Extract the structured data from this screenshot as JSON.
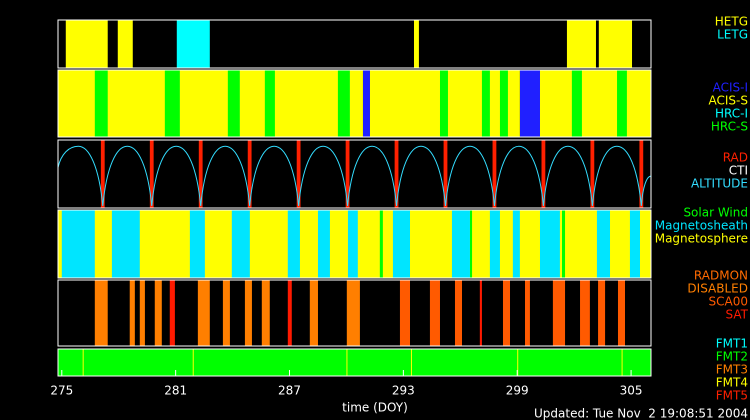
{
  "chart_data": {
    "type": "timeline",
    "xlim": [
      274.8,
      306.05
    ],
    "xticks": [
      275,
      281,
      287,
      293,
      299,
      305
    ],
    "xlabel": "time (DOY)",
    "footer": "Updated: Tue Nov  2 19:08:51 2004",
    "panels": [
      {
        "background": "#000000",
        "series": [
          {
            "name": "HETG",
            "color": "#ffff00",
            "intervals": [
              [
                275.21,
                277.42
              ],
              [
                277.95,
                278.74
              ],
              [
                293.56,
                293.82
              ],
              [
                301.62,
                303.15
              ],
              [
                303.3,
                305.05
              ]
            ]
          },
          {
            "name": "LETG",
            "color": "#00ffff",
            "intervals": [
              [
                281.06,
                282.8
              ]
            ]
          }
        ]
      },
      {
        "background": "#000000",
        "series": [
          {
            "name": "ACIS-I",
            "color": "#2020ff",
            "intervals": [
              [
                290.87,
                291.24
              ],
              [
                299.14,
                300.2
              ]
            ]
          },
          {
            "name": "ACIS-S",
            "color": "#ffff00",
            "intervals": [
              [
                274.8,
                290.87
              ],
              [
                291.24,
                299.14
              ],
              [
                300.2,
                306.05
              ]
            ]
          },
          {
            "name": "HRC-I",
            "color": "#00ffff",
            "intervals": []
          },
          {
            "name": "HRC-S",
            "color": "#00ff00",
            "intervals": [
              [
                276.74,
                277.42
              ],
              [
                280.43,
                281.22
              ],
              [
                283.75,
                284.38
              ],
              [
                285.7,
                286.23
              ],
              [
                289.55,
                290.18
              ],
              [
                294.93,
                295.35
              ],
              [
                297.14,
                297.56
              ],
              [
                298.09,
                298.51
              ],
              [
                301.88,
                302.41
              ],
              [
                304.26,
                304.78
              ]
            ]
          }
        ]
      },
      {
        "background": "#000000",
        "series": [
          {
            "name": "RAD",
            "color": "#ff2000",
            "intervals": [
              [
                277.06,
                277.26
              ],
              [
                279.64,
                279.84
              ],
              [
                282.22,
                282.42
              ],
              [
                284.8,
                285.0
              ],
              [
                287.38,
                287.58
              ],
              [
                289.96,
                290.16
              ],
              [
                292.54,
                292.74
              ],
              [
                295.12,
                295.32
              ],
              [
                297.7,
                297.9
              ],
              [
                300.28,
                300.48
              ],
              [
                302.86,
                303.06
              ],
              [
                305.44,
                305.64
              ]
            ]
          },
          {
            "name": "CTI",
            "color": "#ffffff",
            "intervals": []
          },
          {
            "name": "ALTITUDE",
            "color": "#33ddff",
            "ylim": [
              0,
              150
            ],
            "x": [
              274.8,
              275.87,
              277.16,
              278.45,
              279.74,
              281.03,
              282.32,
              283.61,
              284.9,
              286.19,
              287.48,
              288.77,
              290.06,
              291.35,
              292.64,
              293.93,
              295.22,
              296.51,
              297.8,
              299.09,
              300.38,
              301.67,
              302.96,
              304.25,
              305.54,
              306.05
            ],
            "values": [
              90,
              140,
              0,
              140,
              0,
              140,
              0,
              140,
              0,
              140,
              0,
              140,
              0,
              140,
              0,
              140,
              0,
              140,
              0,
              140,
              0,
              140,
              0,
              140,
              0,
              70
            ]
          }
        ]
      },
      {
        "background": "#ffff00",
        "series": [
          {
            "name": "Solar Wind",
            "color": "#00ff00",
            "intervals": [
              [
                288.71,
                288.87
              ],
              [
                291.76,
                291.92
              ],
              [
                296.51,
                296.62
              ],
              [
                300.46,
                300.57
              ],
              [
                301.36,
                301.52
              ]
            ]
          },
          {
            "name": "Magnetosheath",
            "color": "#00e5ff",
            "intervals": [
              [
                275.0,
                276.74
              ],
              [
                277.64,
                279.11
              ],
              [
                281.75,
                282.54
              ],
              [
                283.96,
                284.91
              ],
              [
                286.91,
                287.55
              ],
              [
                288.5,
                289.13
              ],
              [
                290.08,
                290.6
              ],
              [
                292.45,
                293.35
              ],
              [
                295.56,
                296.51
              ],
              [
                297.56,
                298.09
              ],
              [
                298.77,
                299.14
              ],
              [
                300.2,
                301.25
              ],
              [
                303.2,
                303.89
              ],
              [
                304.94,
                305.47
              ]
            ]
          },
          {
            "name": "Magnetosphere",
            "color": "#ffff00",
            "intervals": []
          }
        ]
      },
      {
        "background": "#000000",
        "series": [
          {
            "name": "RADMON",
            "color": "#ff6a00",
            "intervals": []
          },
          {
            "name": "DISABLED",
            "color": "#ff7f00",
            "intervals": [
              [
                276.74,
                277.42
              ],
              [
                278.58,
                278.85
              ],
              [
                279.11,
                279.38
              ],
              [
                279.9,
                280.27
              ],
              [
                282.17,
                282.8
              ],
              [
                283.49,
                283.86
              ],
              [
                284.65,
                285.02
              ],
              [
                285.54,
                285.96
              ],
              [
                288.07,
                288.5
              ],
              [
                290.02,
                290.71
              ]
            ]
          },
          {
            "name": "SCA00",
            "color": "#ff5a00",
            "intervals": [
              [
                292.82,
                293.35
              ],
              [
                294.4,
                294.93
              ],
              [
                295.72,
                296.09
              ],
              [
                298.25,
                298.62
              ],
              [
                299.41,
                299.67
              ],
              [
                300.88,
                301.52
              ],
              [
                302.31,
                302.83
              ],
              [
                303.26,
                303.63
              ],
              [
                304.31,
                304.68
              ]
            ]
          },
          {
            "name": "SAT",
            "color": "#ff1a00",
            "intervals": [
              [
                280.69,
                280.96
              ],
              [
                286.91,
                287.12
              ],
              [
                297.03,
                297.14
              ]
            ]
          }
        ]
      },
      {
        "background": "#000000",
        "series": [
          {
            "name": "FMT1",
            "color": "#00ffff",
            "intervals": []
          },
          {
            "name": "FMT2",
            "color": "#00ff00",
            "intervals": [
              [
                274.8,
                306.05
              ]
            ]
          },
          {
            "name": "FMT3",
            "color": "#ff8000",
            "intervals": []
          },
          {
            "name": "FMT4",
            "color": "#ffff00",
            "intervals": [
              [
                276.1,
                276.15
              ],
              [
                281.9,
                281.95
              ],
              [
                290.0,
                290.05
              ],
              [
                293.4,
                293.45
              ],
              [
                299.0,
                299.05
              ],
              [
                304.5,
                304.55
              ]
            ]
          },
          {
            "name": "FMT5",
            "color": "#ff2000",
            "intervals": []
          }
        ]
      }
    ]
  }
}
